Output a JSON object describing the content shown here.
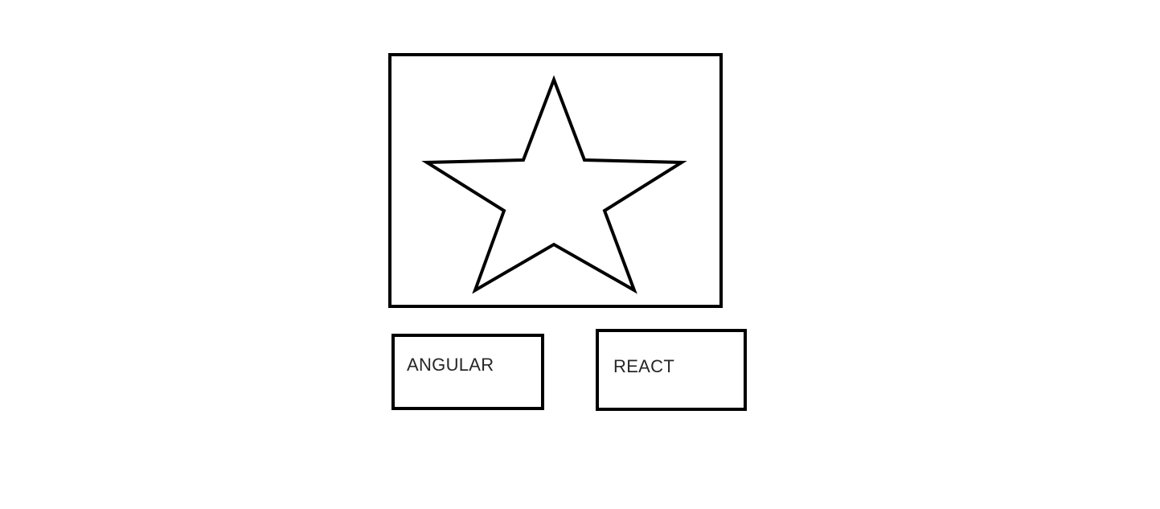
{
  "image_frame": {
    "icon": "star-icon",
    "stroke_color": "#000000"
  },
  "buttons": {
    "angular_label": "ANGULAR",
    "react_label": "REACT"
  }
}
